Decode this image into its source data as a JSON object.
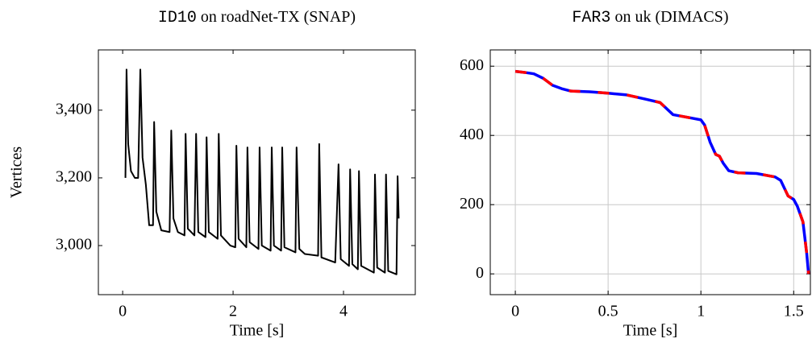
{
  "chart_data": [
    {
      "type": "line",
      "title_code": "ID10",
      "title": "on roadNet-TX (SNAP)",
      "xlabel": "Time [s]",
      "ylabel": "Vertices",
      "grid": false,
      "xlim": [
        -0.44,
        5.3
      ],
      "ylim": [
        2855,
        3578
      ],
      "xticks": [
        0,
        2,
        4
      ],
      "yticks": [
        {
          "value": 3000,
          "label": "3,000"
        },
        {
          "value": 3200,
          "label": "3,200"
        },
        {
          "value": 3400,
          "label": "3,400"
        }
      ],
      "series": [
        {
          "color": "#000000",
          "x": [
            0.05,
            0.07,
            0.1,
            0.15,
            0.22,
            0.28,
            0.32,
            0.36,
            0.42,
            0.48,
            0.55,
            0.57,
            0.61,
            0.7,
            0.85,
            0.88,
            0.92,
            1.0,
            1.12,
            1.14,
            1.18,
            1.3,
            1.33,
            1.37,
            1.5,
            1.52,
            1.56,
            1.72,
            1.74,
            1.78,
            1.95,
            2.04,
            2.06,
            2.1,
            2.24,
            2.26,
            2.3,
            2.46,
            2.48,
            2.52,
            2.68,
            2.7,
            2.74,
            2.87,
            2.89,
            2.93,
            3.13,
            3.15,
            3.2,
            3.3,
            3.54,
            3.56,
            3.6,
            3.85,
            3.91,
            3.95,
            4.1,
            4.12,
            4.16,
            4.26,
            4.28,
            4.32,
            4.55,
            4.57,
            4.61,
            4.75,
            4.77,
            4.81,
            4.96,
            4.98,
            5.0
          ],
          "values": [
            3200,
            3520,
            3300,
            3220,
            3200,
            3200,
            3520,
            3260,
            3180,
            3060,
            3060,
            3365,
            3100,
            3045,
            3040,
            3340,
            3080,
            3040,
            3030,
            3330,
            3050,
            3030,
            3330,
            3040,
            3025,
            3320,
            3040,
            3020,
            3330,
            3030,
            3000,
            2995,
            3295,
            3020,
            2995,
            3290,
            3010,
            2990,
            3290,
            3000,
            2985,
            3290,
            3000,
            2985,
            3290,
            2995,
            2980,
            3290,
            2990,
            2975,
            2970,
            3300,
            2965,
            2950,
            3240,
            2960,
            2940,
            3225,
            2945,
            2930,
            3220,
            2940,
            2920,
            3210,
            2935,
            2920,
            3210,
            2925,
            2915,
            3205,
            3080
          ]
        }
      ]
    },
    {
      "type": "line",
      "title_code": "FAR3",
      "title": "on uk (DIMACS)",
      "xlabel": "Time [s]",
      "grid": true,
      "xlim": [
        -0.135,
        1.59
      ],
      "ylim": [
        -60,
        647
      ],
      "xticks": [
        0,
        0.5,
        1,
        1.5
      ],
      "yticks": [
        0,
        200,
        400,
        600
      ],
      "series": [
        {
          "color": "#0000ff",
          "accent": "#ff0000",
          "x": [
            0,
            0.05,
            0.1,
            0.15,
            0.2,
            0.25,
            0.3,
            0.4,
            0.5,
            0.6,
            0.7,
            0.78,
            0.85,
            0.95,
            1.0,
            1.02,
            1.05,
            1.08,
            1.1,
            1.12,
            1.15,
            1.2,
            1.3,
            1.4,
            1.43,
            1.47,
            1.5,
            1.52,
            1.55,
            1.57,
            1.58
          ],
          "values": [
            585,
            582,
            578,
            565,
            545,
            535,
            528,
            526,
            522,
            517,
            505,
            495,
            460,
            450,
            445,
            430,
            380,
            345,
            340,
            320,
            298,
            292,
            290,
            280,
            270,
            225,
            215,
            195,
            150,
            60,
            0
          ]
        }
      ]
    }
  ]
}
